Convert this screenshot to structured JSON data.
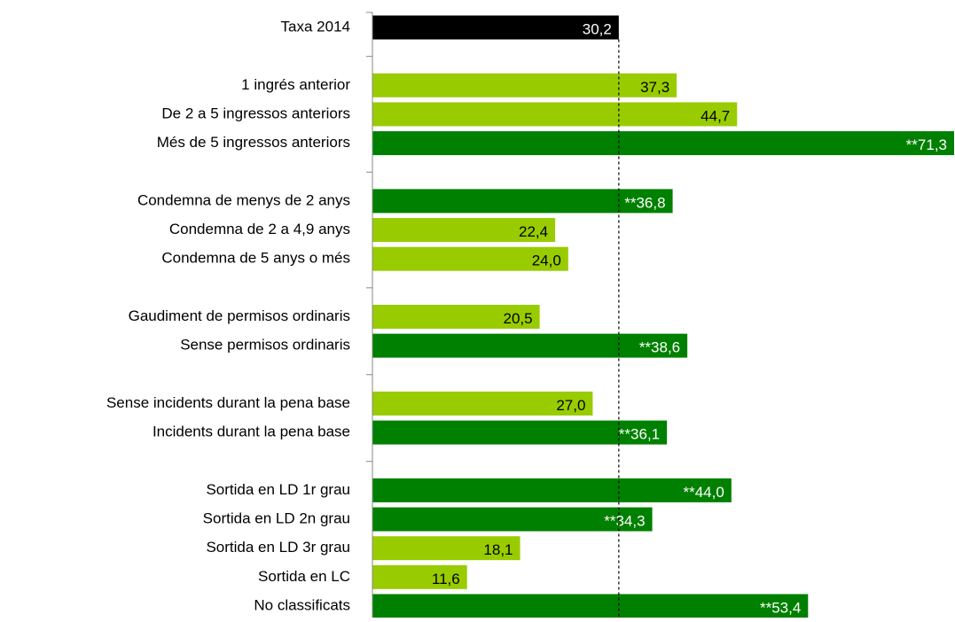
{
  "chart_data": {
    "type": "bar",
    "orientation": "horizontal",
    "categories": [
      "Taxa 2014",
      null,
      "1 ingrés anterior",
      "De 2 a 5 ingressos anteriors",
      "Més de 5 ingressos anteriors",
      null,
      "Condemna de menys de 2 anys",
      "Condemna de 2 a 4,9 anys",
      "Condemna de 5 anys o més",
      null,
      "Gaudiment de permisos ordinaris",
      "Sense permisos ordinaris",
      null,
      "Sense incidents durant la pena base",
      "Incidents durant la pena base",
      null,
      "Sortida en LD 1r grau",
      "Sortida en LD 2n grau",
      "Sortida en LD 3r grau",
      "Sortida en LC",
      "No classificats"
    ],
    "values": [
      30.2,
      null,
      37.3,
      44.7,
      71.3,
      null,
      36.8,
      22.4,
      24.0,
      null,
      20.5,
      38.6,
      null,
      27.0,
      36.1,
      null,
      44.0,
      34.3,
      18.1,
      11.6,
      53.4
    ],
    "value_labels": [
      "30,2",
      null,
      "37,3",
      "44,7",
      "**71,3",
      null,
      "**36,8",
      "22,4",
      "24,0",
      null,
      "20,5",
      "**38,6",
      null,
      "27,0",
      "**36,1",
      null,
      "**44,0",
      "**34,3",
      "18,1",
      "11,6",
      "**53,4"
    ],
    "colors": [
      "#000000",
      null,
      "#99cc00",
      "#99cc00",
      "#008000",
      null,
      "#008000",
      "#99cc00",
      "#99cc00",
      null,
      "#99cc00",
      "#008000",
      null,
      "#99cc00",
      "#008000",
      null,
      "#008000",
      "#008000",
      "#99cc00",
      "#99cc00",
      "#008000"
    ],
    "reference_line": true
  }
}
